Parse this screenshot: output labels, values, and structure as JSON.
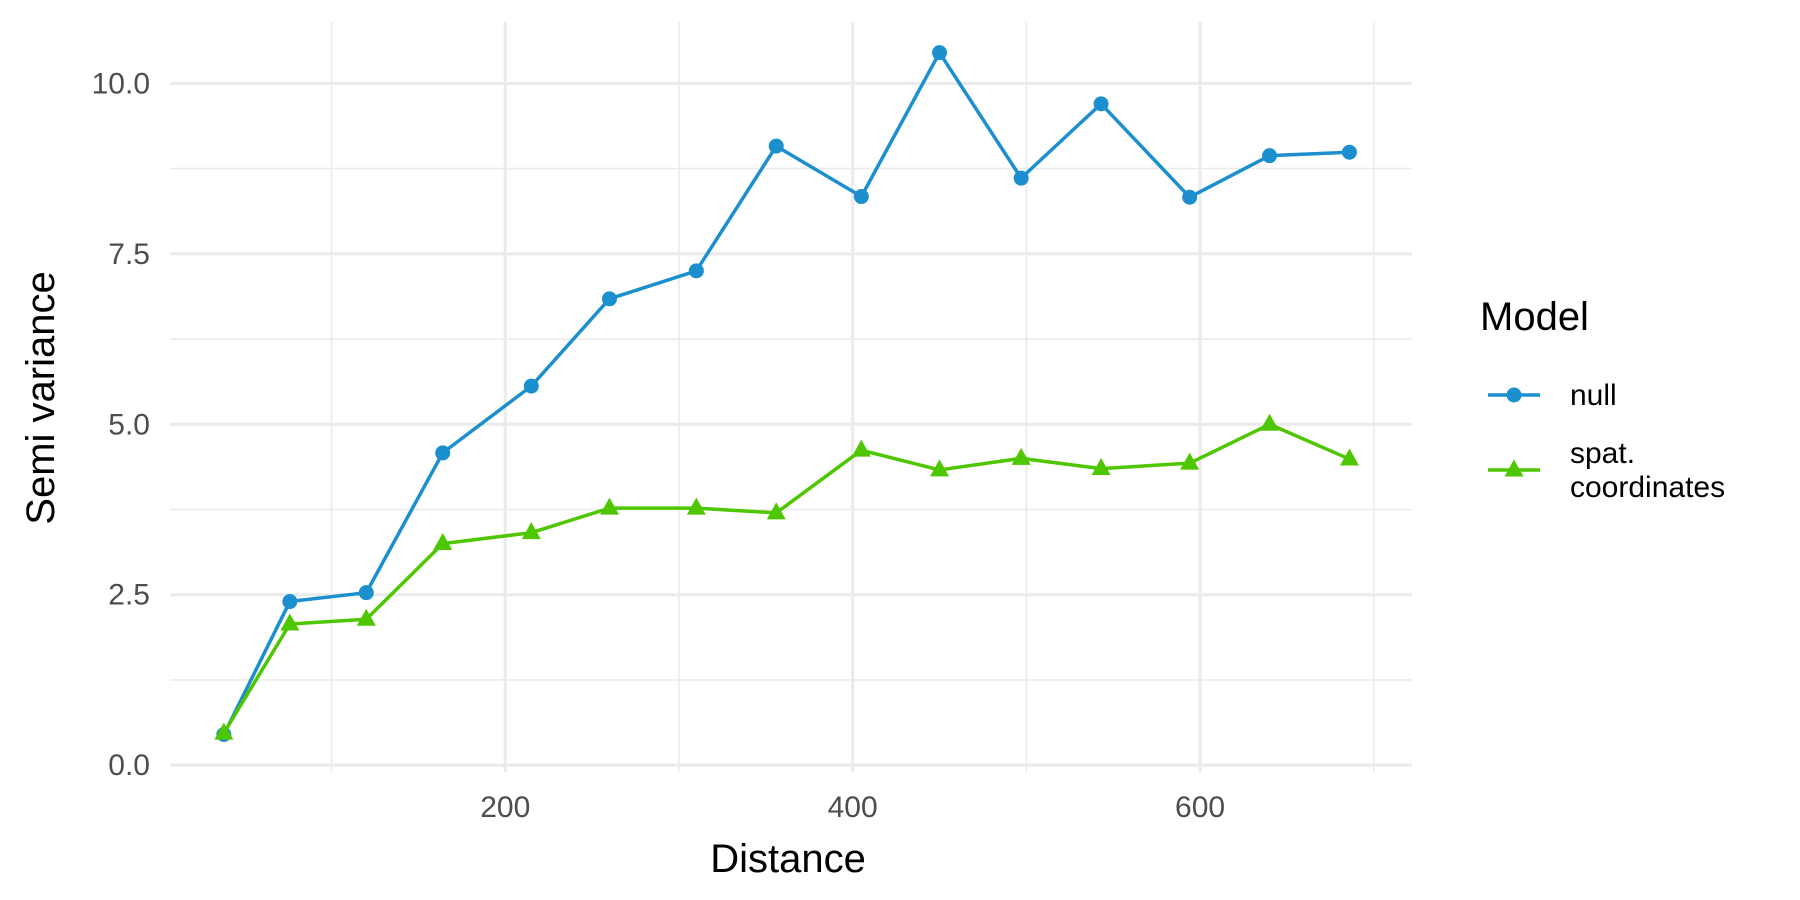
{
  "chart_data": {
    "type": "line",
    "xlabel": "Distance",
    "ylabel": "Semi variance",
    "x_ticks": [
      200,
      400,
      600
    ],
    "y_ticks": [
      0.0,
      2.5,
      5.0,
      7.5,
      10.0
    ],
    "x_tick_labels": [
      "200",
      "400",
      "600"
    ],
    "y_tick_labels": [
      "0.0",
      "2.5",
      "5.0",
      "7.5",
      "10.0"
    ],
    "xlim": [
      7,
      722
    ],
    "ylim": [
      -0.1,
      10.9
    ],
    "grid": true,
    "legend_title": "Model",
    "legend_position": "right",
    "x": [
      38,
      76,
      120,
      164,
      215,
      260,
      310,
      356,
      405,
      450,
      497,
      543,
      594,
      640,
      686
    ],
    "series": [
      {
        "name": "null",
        "label_lines": [
          "null"
        ],
        "color": "#1c8fce",
        "marker": "circle",
        "values": [
          0.45,
          2.4,
          2.53,
          4.58,
          5.56,
          6.84,
          7.25,
          9.08,
          8.34,
          10.45,
          8.61,
          9.7,
          8.33,
          8.94,
          8.99
        ]
      },
      {
        "name": "spat. coordinates",
        "label_lines": [
          "spat.",
          "coordinates"
        ],
        "color": "#4fc700",
        "marker": "triangle",
        "values": [
          0.47,
          2.07,
          2.14,
          3.25,
          3.41,
          3.77,
          3.77,
          3.7,
          4.62,
          4.33,
          4.5,
          4.35,
          4.43,
          5.0,
          4.49
        ]
      }
    ]
  }
}
